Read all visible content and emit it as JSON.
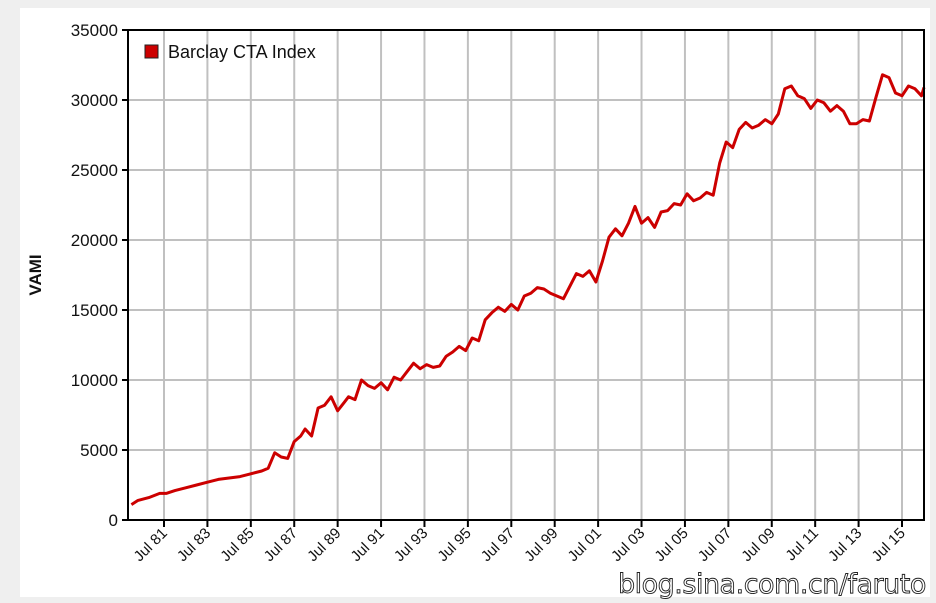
{
  "chart_data": {
    "type": "line",
    "title": "",
    "xlabel": "",
    "ylabel": "VAMI",
    "ylim": [
      0,
      35000
    ],
    "yticks": [
      0,
      5000,
      10000,
      15000,
      20000,
      25000,
      30000,
      35000
    ],
    "xtick_labels": [
      "Jul 81",
      "Jul 83",
      "Jul 85",
      "Jul 87",
      "Jul 89",
      "Jul 91",
      "Jul 93",
      "Jul 95",
      "Jul 97",
      "Jul 99",
      "Jul 01",
      "Jul 03",
      "Jul 05",
      "Jul 07",
      "Jul 09",
      "Jul 11",
      "Jul 13",
      "Jul 15"
    ],
    "xlim": [
      1979.9,
      2016.6
    ],
    "grid": true,
    "legend_position": "upper-left",
    "series": [
      {
        "name": "Barclay CTA Index",
        "color": "#cc0000",
        "x": [
          1980.0,
          1980.3,
          1980.8,
          1981.3,
          1981.6,
          1982.0,
          1982.5,
          1983.0,
          1983.5,
          1984.0,
          1984.5,
          1985.0,
          1985.5,
          1986.0,
          1986.3,
          1986.6,
          1986.9,
          1987.2,
          1987.5,
          1987.8,
          1988.0,
          1988.3,
          1988.6,
          1988.9,
          1989.2,
          1989.5,
          1989.8,
          1990.0,
          1990.3,
          1990.6,
          1990.9,
          1991.2,
          1991.5,
          1991.8,
          1992.1,
          1992.4,
          1992.7,
          1993.0,
          1993.3,
          1993.6,
          1993.9,
          1994.2,
          1994.5,
          1994.8,
          1995.1,
          1995.4,
          1995.7,
          1996.0,
          1996.3,
          1996.6,
          1996.9,
          1997.2,
          1997.5,
          1997.8,
          1998.1,
          1998.4,
          1998.7,
          1999.0,
          1999.3,
          1999.6,
          1999.9,
          2000.2,
          2000.5,
          2000.8,
          2001.1,
          2001.4,
          2001.7,
          2002.0,
          2002.3,
          2002.6,
          2002.9,
          2003.2,
          2003.5,
          2003.8,
          2004.1,
          2004.4,
          2004.7,
          2005.0,
          2005.3,
          2005.6,
          2005.9,
          2006.2,
          2006.5,
          2006.8,
          2007.1,
          2007.4,
          2007.7,
          2008.0,
          2008.3,
          2008.6,
          2008.9,
          2009.2,
          2009.5,
          2009.8,
          2010.1,
          2010.4,
          2010.7,
          2011.0,
          2011.3,
          2011.6,
          2011.9,
          2012.2,
          2012.5,
          2012.8,
          2013.1,
          2013.4,
          2013.7,
          2014.0,
          2014.3,
          2014.6,
          2014.9,
          2015.2,
          2015.5,
          2015.8,
          2016.1,
          2016.4,
          2016.6
        ],
        "values": [
          1100,
          1400,
          1600,
          1900,
          1900,
          2100,
          2300,
          2500,
          2700,
          2900,
          3000,
          3100,
          3300,
          3500,
          3700,
          4800,
          4500,
          4400,
          5600,
          6000,
          6500,
          6000,
          8000,
          8200,
          8800,
          7800,
          8400,
          8800,
          8600,
          10000,
          9600,
          9400,
          9800,
          9300,
          10200,
          10000,
          10600,
          11200,
          10800,
          11100,
          10900,
          11000,
          11700,
          12000,
          12400,
          12100,
          13000,
          12800,
          14300,
          14800,
          15200,
          14900,
          15400,
          15000,
          16000,
          16200,
          16600,
          16500,
          16200,
          16000,
          15800,
          16700,
          17600,
          17400,
          17800,
          17000,
          18500,
          20200,
          20800,
          20300,
          21200,
          22400,
          21200,
          21600,
          20900,
          22000,
          22100,
          22600,
          22500,
          23300,
          22800,
          23000,
          23400,
          23200,
          25500,
          27000,
          26600,
          27900,
          28400,
          28000,
          28200,
          28600,
          28300,
          29000,
          30800,
          31000,
          30300,
          30100,
          29400,
          30000,
          29800,
          29200,
          29600,
          29200,
          28300,
          28300,
          28600,
          28500,
          30200,
          31800,
          31600,
          30500,
          30300,
          31000,
          30800,
          30300,
          30900
        ]
      }
    ]
  },
  "legend": {
    "label": "Barclay CTA Index"
  },
  "axis": {
    "ylabel": "VAMI"
  },
  "watermark": "blog.sina.com.cn/faruto"
}
